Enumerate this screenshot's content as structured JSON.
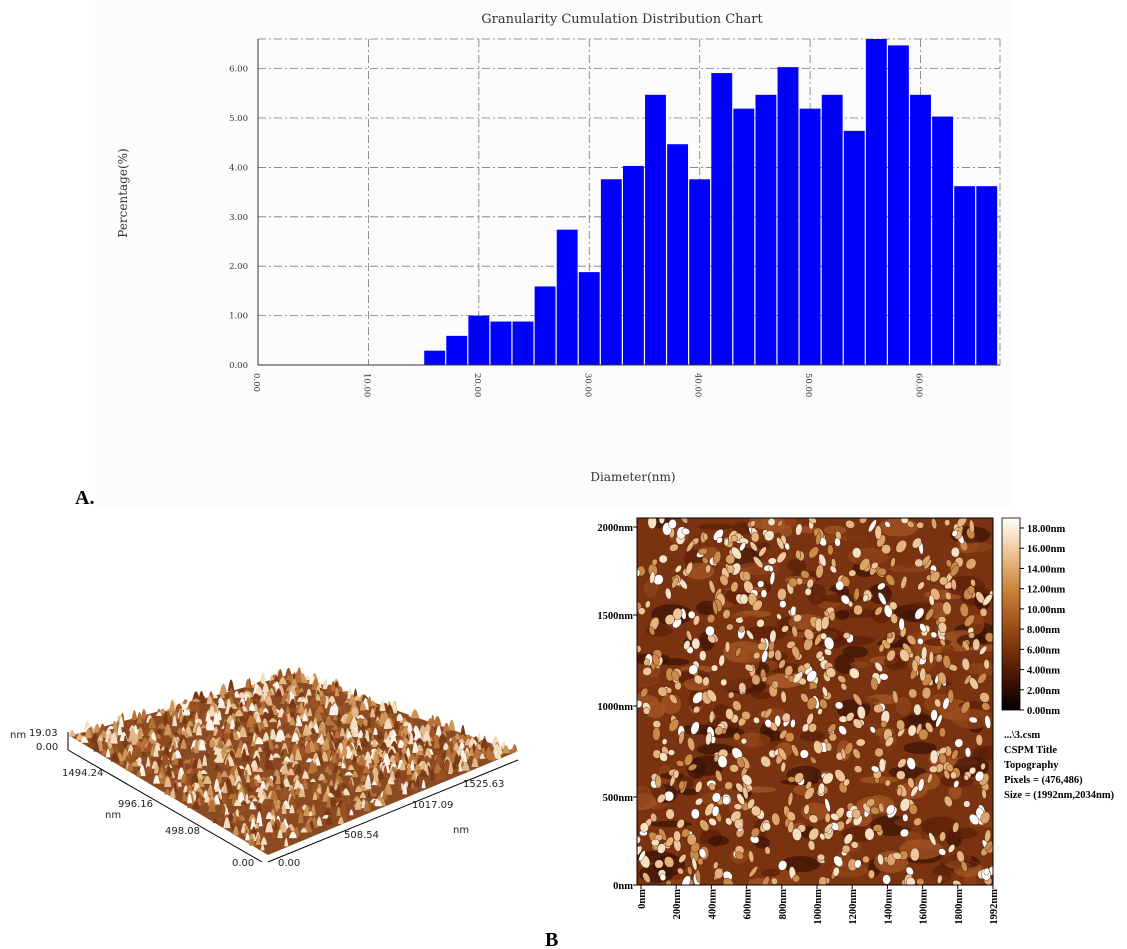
{
  "figure": {
    "panel_a_label": "A.",
    "panel_b_label": "B"
  },
  "chart_data": [
    {
      "type": "bar",
      "title": "Granularity Cumulation Distribution  Chart",
      "xlabel": "Diameter(nm)",
      "ylabel": "Percentage(%)",
      "ylim": [
        0,
        6.6
      ],
      "xlim": [
        0,
        67.2
      ],
      "y_ticks": [
        "0.00",
        "1.00",
        "2.00",
        "3.00",
        "4.00",
        "5.00",
        "6.00"
      ],
      "x_ticks": [
        {
          "value": 0,
          "label": "0.00"
        },
        {
          "value": 10,
          "label": "10.00"
        },
        {
          "value": 20,
          "label": "20.00"
        },
        {
          "value": 30,
          "label": "30.00"
        },
        {
          "value": 40,
          "label": "40.00"
        },
        {
          "value": 50,
          "label": "50.00"
        },
        {
          "value": 60,
          "label": "60.00"
        }
      ],
      "bin_width": 2,
      "bins_start": [
        15,
        17,
        19,
        21,
        23,
        25,
        27,
        29,
        31,
        33,
        35,
        37,
        39,
        41,
        43,
        45,
        47,
        49,
        51,
        53,
        55,
        57,
        59,
        61,
        63,
        65
      ],
      "values": [
        0.29,
        0.59,
        1.0,
        0.88,
        0.88,
        1.59,
        2.74,
        1.88,
        3.76,
        4.03,
        5.47,
        4.47,
        3.76,
        5.91,
        5.19,
        5.47,
        6.03,
        5.19,
        5.47,
        4.74,
        6.6,
        6.47,
        5.47,
        5.03,
        3.62,
        3.62
      ],
      "bar_color": "#0000ff",
      "grid": true
    },
    {
      "type": "3d-surface",
      "z_labels": [
        "19.03",
        "0.00"
      ],
      "z_unit": "nm",
      "y_axis_labels": [
        "1494.24",
        "996.16",
        "498.08",
        "0.00"
      ],
      "y_unit": "nm",
      "x_axis_labels": [
        "0.00",
        "508.54",
        "1017.09",
        "1525.63"
      ],
      "x_unit": "nm"
    },
    {
      "type": "heatmap",
      "y_ticks": [
        "2000nm",
        "1500nm",
        "1000nm",
        "500nm",
        "0nm"
      ],
      "x_ticks": [
        "0nm",
        "200nm",
        "400nm",
        "600nm",
        "800nm",
        "1000nm",
        "1200nm",
        "1400nm",
        "1600nm",
        "1800nm",
        "1992nm"
      ],
      "colorbar_ticks": [
        "18.00nm",
        "16.00nm",
        "14.00nm",
        "12.00nm",
        "10.00nm",
        "8.00nm",
        "6.00nm",
        "4.00nm",
        "2.00nm",
        "0.00nm"
      ],
      "colormap": [
        "#000000",
        "#5a1a05",
        "#a04f1b",
        "#d08a45",
        "#f0cfa0",
        "#ffffff"
      ],
      "info": [
        "...\\3.csm",
        "CSPM Title",
        "Topography",
        "Pixels = (476,486)",
        "Size = (1992nm,2034nm)"
      ]
    }
  ]
}
